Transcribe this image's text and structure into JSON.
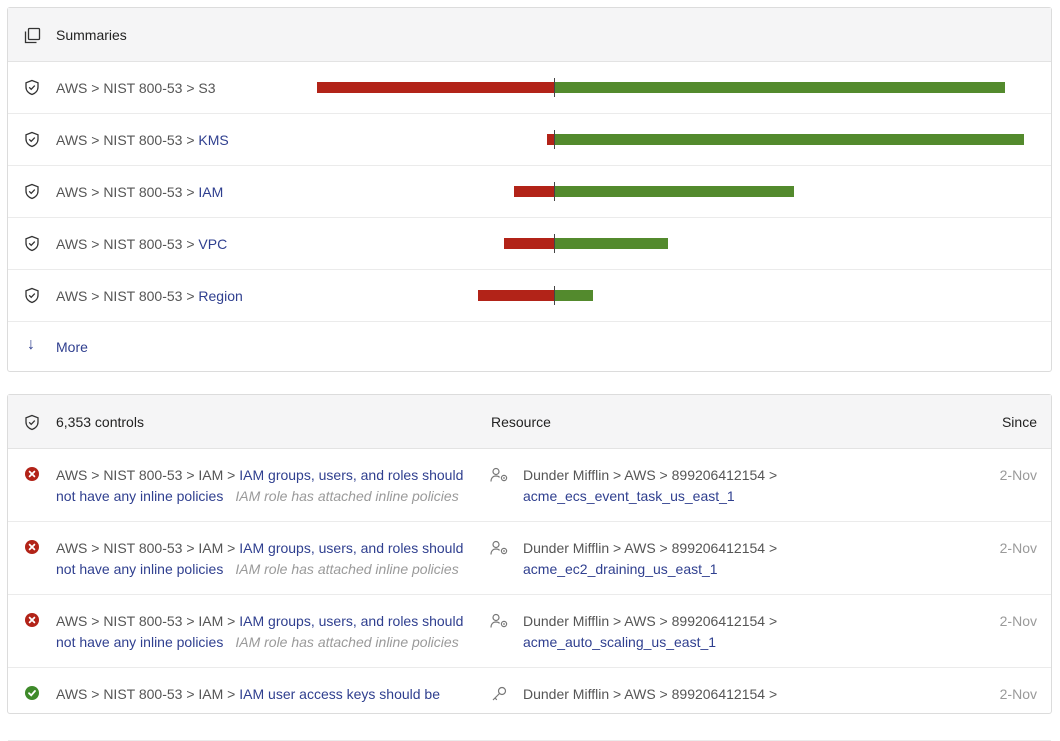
{
  "summaries": {
    "title": "Summaries",
    "rows": [
      {
        "prefix": "AWS > NIST 800-53 > ",
        "name": "S3",
        "name_is_link": false,
        "alarm": 237,
        "ok": 451
      },
      {
        "prefix": "AWS > NIST 800-53 > ",
        "name": "KMS",
        "name_is_link": true,
        "alarm": 7,
        "ok": 470
      },
      {
        "prefix": "AWS > NIST 800-53 > ",
        "name": "IAM",
        "name_is_link": true,
        "alarm": 40,
        "ok": 240
      },
      {
        "prefix": "AWS > NIST 800-53 > ",
        "name": "VPC",
        "name_is_link": true,
        "alarm": 50,
        "ok": 114
      },
      {
        "prefix": "AWS > NIST 800-53 > ",
        "name": "Region",
        "name_is_link": true,
        "alarm": 76,
        "ok": 39
      }
    ],
    "more_label": "More",
    "colors": {
      "alarm": "#b22318",
      "ok": "#538a2d"
    }
  },
  "controls": {
    "count_label": "6,353 controls",
    "resource_header": "Resource",
    "since_header": "Since",
    "rows": [
      {
        "status": "alarm",
        "control_prefix": "AWS > NIST 800-53 > IAM > ",
        "control_title": "IAM groups, users, and roles should not have any inline policies",
        "reason": "IAM role has attached inline policies",
        "resource_prefix": "Dunder Mifflin > AWS > 899206412154 > ",
        "resource_name": "acme_ecs_event_task_us_east_1",
        "since": "2-Nov"
      },
      {
        "status": "alarm",
        "control_prefix": "AWS > NIST 800-53 > IAM > ",
        "control_title": "IAM groups, users, and roles should not have any inline policies",
        "reason": "IAM role has attached inline policies",
        "resource_prefix": "Dunder Mifflin > AWS > 899206412154 > ",
        "resource_name": "acme_ec2_draining_us_east_1",
        "since": "2-Nov"
      },
      {
        "status": "alarm",
        "control_prefix": "AWS > NIST 800-53 > IAM > ",
        "control_title": "IAM groups, users, and roles should not have any inline policies",
        "reason": "IAM role has attached inline policies",
        "resource_prefix": "Dunder Mifflin > AWS > 899206412154 > ",
        "resource_name": "acme_auto_scaling_us_east_1",
        "since": "2-Nov"
      },
      {
        "status": "ok",
        "control_prefix": "AWS > NIST 800-53 > IAM > ",
        "control_title": "IAM user access keys should be",
        "reason": "",
        "resource_prefix": "Dunder Mifflin > AWS > 899206412154 >",
        "resource_name": "",
        "since": "2-Nov"
      }
    ]
  }
}
